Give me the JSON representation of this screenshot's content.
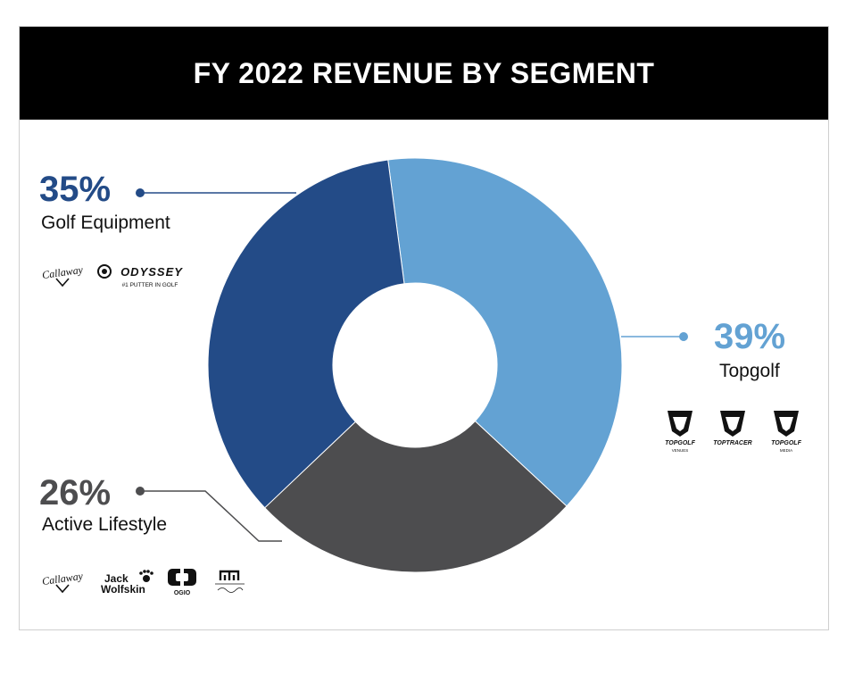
{
  "colors": {
    "golf_equipment": "#234b87",
    "topgolf": "#63a2d3",
    "active_lifestyle": "#4d4d4f",
    "banner": "#000000"
  },
  "chart_data": {
    "type": "pie",
    "donut": true,
    "title": "FY 2022 REVENUE BY SEGMENT",
    "series": [
      {
        "name": "Golf Equipment",
        "value": 35,
        "value_label": "35%",
        "color": "#234b87"
      },
      {
        "name": "Topgolf",
        "value": 39,
        "value_label": "39%",
        "color": "#63a2d3"
      },
      {
        "name": "Active Lifestyle",
        "value": 26,
        "value_label": "26%",
        "color": "#4d4d4f"
      }
    ]
  },
  "brands": {
    "golf_equipment": [
      "Callaway",
      "ODYSSEY",
      "#1 PUTTER IN GOLF"
    ],
    "topgolf": [
      {
        "name": "TOPGOLF",
        "sub": "VENUES"
      },
      {
        "name": "TOPTRACER",
        "sub": ""
      },
      {
        "name": "TOPGOLF",
        "sub": "MEDIA"
      }
    ],
    "active_lifestyle": [
      "Callaway",
      "Jack",
      "Wolfskin",
      "OGIO"
    ]
  },
  "icons": [
    "callaway-logo-icon",
    "odyssey-logo-icon",
    "topgolf-logo-icon",
    "jack-wolfskin-logo-icon",
    "ogio-logo-icon",
    "travismathew-logo-icon"
  ]
}
